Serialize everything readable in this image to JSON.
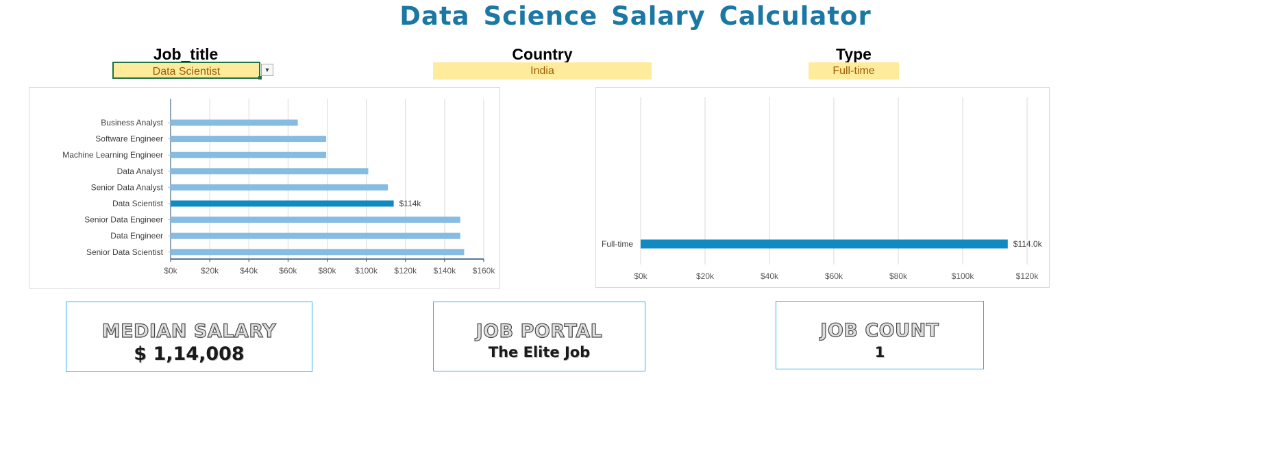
{
  "title": "Data Science Salary Calculator",
  "filters": {
    "job_title": {
      "label": "Job_title",
      "value": "Data Scientist"
    },
    "country": {
      "label": "Country",
      "value": "India"
    },
    "type": {
      "label": "Type",
      "value": "Full-time"
    }
  },
  "colors": {
    "title": "#1b77a3",
    "bar_default": "#86bce1",
    "bar_highlight": "#1189c1",
    "filter_fill": "#feeb9c",
    "filter_text": "#9c5a00",
    "card_border": "#2ab3e6"
  },
  "chart_data": [
    {
      "type": "bar",
      "orientation": "horizontal",
      "categories": [
        "Business Analyst",
        "Software Engineer",
        "Machine Learning Engineer",
        "Data Analyst",
        "Senior Data Analyst",
        "Data Scientist",
        "Senior Data Engineer",
        "Data Engineer",
        "Senior Data Scientist"
      ],
      "values": [
        65000,
        79500,
        79500,
        101000,
        111000,
        114000,
        148000,
        148000,
        150000
      ],
      "highlight": "Data Scientist",
      "data_labels": {
        "Data Scientist": "$114k"
      },
      "x_ticks": [
        "$0k",
        "$20k",
        "$40k",
        "$60k",
        "$80k",
        "$100k",
        "$120k",
        "$140k",
        "$160k"
      ],
      "xlim": [
        0,
        160000
      ],
      "grid": "vertical"
    },
    {
      "type": "bar",
      "orientation": "horizontal",
      "categories": [
        "Full-time"
      ],
      "values": [
        114000
      ],
      "data_labels": {
        "Full-time": "$114.0k"
      },
      "x_ticks": [
        "$0k",
        "$20k",
        "$40k",
        "$60k",
        "$80k",
        "$100k",
        "$120k"
      ],
      "xlim": [
        0,
        120000
      ],
      "grid": "vertical"
    }
  ],
  "kpis": {
    "median_salary": {
      "title": "MEDIAN SALARY",
      "value": "$ 1,14,008"
    },
    "job_portal": {
      "title": "JOB PORTAL",
      "value": "The Elite Job"
    },
    "job_count": {
      "title": "JOB COUNT",
      "value": "1"
    }
  }
}
